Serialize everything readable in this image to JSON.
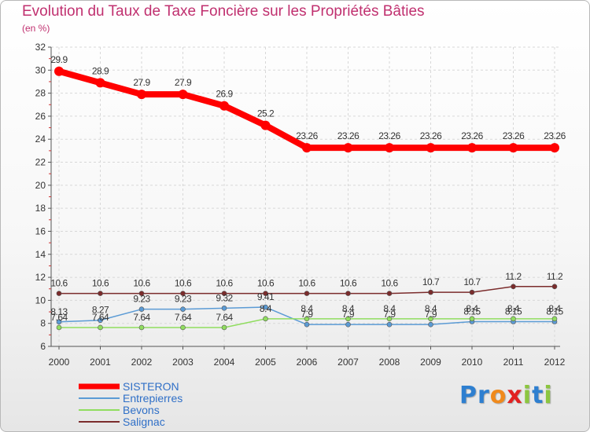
{
  "title": "Evolution du Taux de Taxe Foncière sur les Propriétés Bâties",
  "unit": "(en %)",
  "logo": {
    "letters": [
      {
        "ch": "P",
        "color": "#2e7fd0"
      },
      {
        "ch": "r",
        "color": "#2e7fd0"
      },
      {
        "ch": "o",
        "color": "#f08a1c"
      },
      {
        "ch": "x",
        "color": "#e22121"
      },
      {
        "ch": "i",
        "color": "#8cc63f"
      },
      {
        "ch": "t",
        "color": "#2e7fd0"
      },
      {
        "ch": "i",
        "color": "#8cc63f"
      }
    ]
  },
  "chart_data": {
    "type": "line",
    "title": "Evolution du Taux de Taxe Foncière sur les Propriétés Bâties",
    "ylabel": "(en %)",
    "xlabel": "",
    "ylim": [
      6,
      32
    ],
    "yticks": [
      "6",
      "8",
      "10",
      "12",
      "14",
      "16",
      "18",
      "20",
      "22",
      "24",
      "26",
      "28",
      "30",
      "32"
    ],
    "ytick_values": [
      6,
      8,
      10,
      12,
      14,
      16,
      18,
      20,
      22,
      24,
      26,
      28,
      30,
      32
    ],
    "categories": [
      "2000",
      "2001",
      "2002",
      "2003",
      "2004",
      "2005",
      "2006",
      "2007",
      "2008",
      "2009",
      "2010",
      "2011",
      "2012"
    ],
    "legend_position": "bottom-left",
    "series": [
      {
        "name": "SISTERON",
        "color": "#ff0000",
        "values": [
          29.9,
          28.9,
          27.9,
          27.9,
          26.9,
          25.2,
          23.26,
          23.26,
          23.26,
          23.26,
          23.26,
          23.26,
          23.26
        ],
        "labels": [
          "29.9",
          "28.9",
          "27.9",
          "27.9",
          "26.9",
          "25.2",
          "23.26",
          "23.26",
          "23.26",
          "23.26",
          "23.26",
          "23.26",
          "23.26"
        ]
      },
      {
        "name": "Entrepierres",
        "color": "#5b9bd5",
        "values": [
          8.13,
          8.27,
          9.23,
          9.23,
          9.32,
          9.41,
          7.9,
          7.9,
          7.9,
          7.9,
          8.15,
          8.15,
          8.15
        ],
        "labels": [
          "8.13",
          "8.27",
          "9.23",
          "9.23",
          "9.32",
          "9.41",
          "7.9",
          "7.9",
          "7.9",
          "7.9",
          "8.15",
          "8.15",
          "8.15"
        ]
      },
      {
        "name": "Bevons",
        "color": "#90dd5f",
        "values": [
          7.64,
          7.64,
          7.64,
          7.64,
          7.64,
          8.4,
          8.4,
          8.4,
          8.4,
          8.4,
          8.4,
          8.4,
          8.4
        ],
        "labels": [
          "7.64",
          "7.64",
          "7.64",
          "7.64",
          "7.64",
          "8.4",
          "8.4",
          "8.4",
          "8.4",
          "8.4",
          "8.4",
          "8.4",
          "8.4"
        ]
      },
      {
        "name": "Salignac",
        "color": "#7b2c2c",
        "values": [
          10.6,
          10.6,
          10.6,
          10.6,
          10.6,
          10.6,
          10.6,
          10.6,
          10.6,
          10.7,
          10.7,
          11.2,
          11.2
        ],
        "labels": [
          "10.6",
          "10.6",
          "10.6",
          "10.6",
          "10.6",
          "10.6",
          "10.6",
          "10.6",
          "10.6",
          "10.7",
          "10.7",
          "11.2",
          "11.2"
        ]
      }
    ]
  }
}
